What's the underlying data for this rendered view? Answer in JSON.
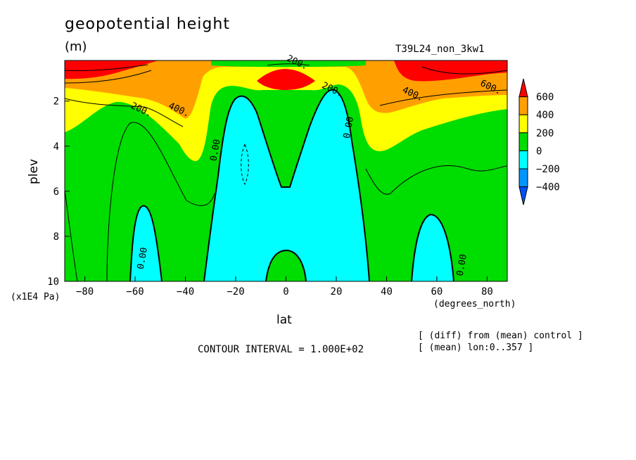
{
  "chart_data": {
    "type": "heatmap",
    "title": "geopotential height",
    "units": "(m)",
    "run_label": "T39L24_non_3kw1",
    "xlabel": "lat",
    "xunits": "(degrees_north)",
    "ylabel": "plev",
    "yunits": "(x1E4 Pa)",
    "xlim": [
      -88,
      88
    ],
    "ylim": [
      10,
      0.2
    ],
    "x_ticks": [
      -80,
      -60,
      -40,
      -20,
      0,
      20,
      40,
      60,
      80
    ],
    "y_ticks": [
      2,
      4,
      6,
      8,
      10
    ],
    "contour_interval": "CONTOUR INTERVAL = 1.000E+02",
    "notes": [
      "[ (diff) from (mean) control ]",
      "[ (mean) lon:0..357 ]"
    ],
    "legend": {
      "position": "right",
      "labels": [
        "600",
        "400",
        "200",
        "0",
        "-200",
        "-400"
      ],
      "colors": [
        "#ff0000",
        "#ffa000",
        "#ffff00",
        "#00dd00",
        "#00ffff",
        "#0096ff",
        "#0050ff"
      ]
    },
    "contour_labels": [
      {
        "text": "600.",
        "lat": 81,
        "plev": 1.5
      },
      {
        "text": "400.",
        "lat": 50,
        "plev": 1.8
      },
      {
        "text": "200.",
        "lat": 18,
        "plev": 1.6
      },
      {
        "text": "200.",
        "lat": -58,
        "plev": 2.5
      },
      {
        "text": "400.",
        "lat": -43,
        "plev": 2.5
      },
      {
        "text": "200.",
        "lat": 4,
        "plev": 0.4
      },
      {
        "text": "0.00",
        "lat": -27,
        "plev": 4.2
      },
      {
        "text": "0.00",
        "lat": 26,
        "plev": 3.2
      },
      {
        "text": "0.00",
        "lat": -56,
        "plev": 9.0
      },
      {
        "text": "0.00",
        "lat": 71,
        "plev": 9.3
      }
    ]
  }
}
